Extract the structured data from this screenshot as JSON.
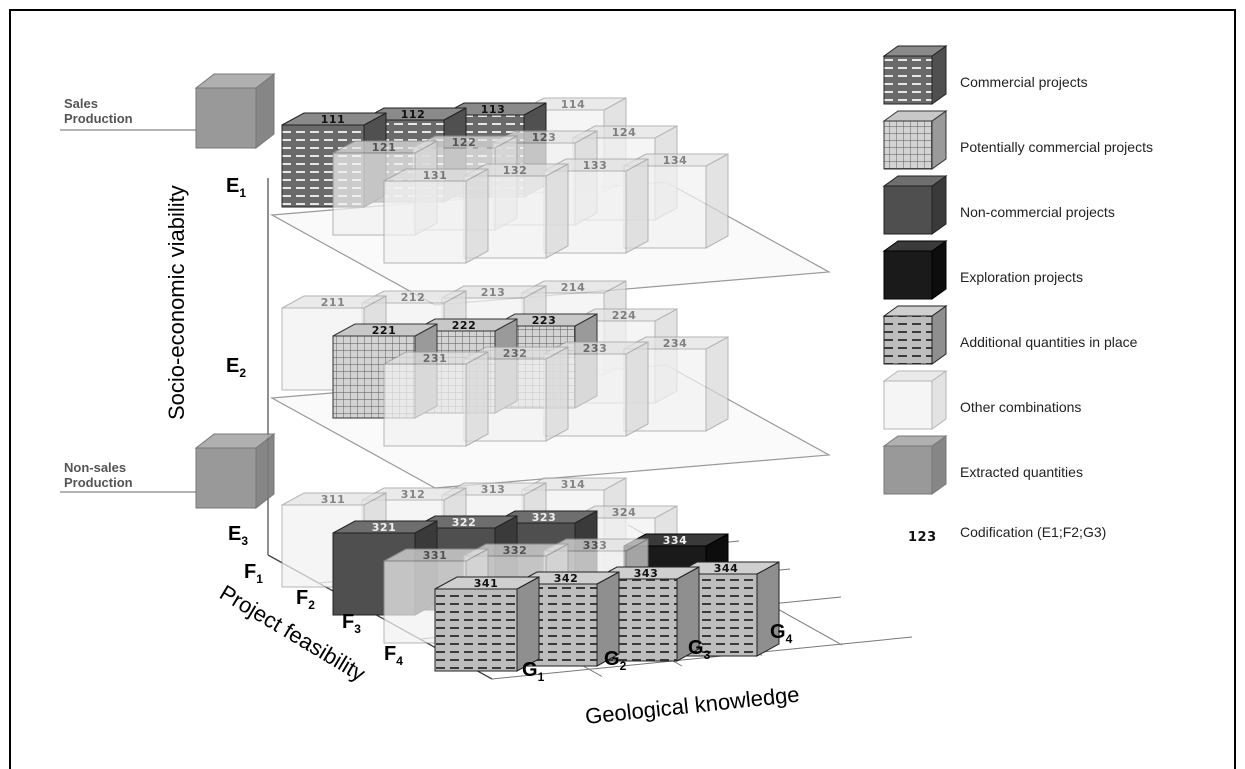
{
  "labels": {
    "socio_economic": "Socio-economic viability",
    "project_feasibility": "Project feasibility",
    "geological_knowledge": "Geological knowledge",
    "sales_production": [
      "Sales",
      "Production"
    ],
    "non_sales_production": [
      "Non-sales",
      "Production"
    ]
  },
  "e_levels": [
    {
      "main": "E",
      "sub": "1"
    },
    {
      "main": "E",
      "sub": "2"
    },
    {
      "main": "E",
      "sub": "3"
    }
  ],
  "f_levels": [
    {
      "main": "F",
      "sub": "1"
    },
    {
      "main": "F",
      "sub": "2"
    },
    {
      "main": "F",
      "sub": "3"
    },
    {
      "main": "F",
      "sub": "4"
    }
  ],
  "g_levels": [
    {
      "main": "G",
      "sub": "1"
    },
    {
      "main": "G",
      "sub": "2"
    },
    {
      "main": "G",
      "sub": "3"
    },
    {
      "main": "G",
      "sub": "4"
    }
  ],
  "legend": [
    {
      "type": "commercial",
      "label": "Commercial projects"
    },
    {
      "type": "potential",
      "label": "Potentially commercial projects"
    },
    {
      "type": "noncommercial",
      "label": "Non-commercial projects"
    },
    {
      "type": "exploration",
      "label": "Exploration projects"
    },
    {
      "type": "additional",
      "label": "Additional quantities in place"
    },
    {
      "type": "other",
      "label": "Other combinations"
    },
    {
      "type": "extracted",
      "label": "Extracted quantities"
    },
    {
      "type": "code",
      "code": "123",
      "label": "Codification (E1;F2;G3)"
    }
  ],
  "cubes": [
    {
      "code": "114",
      "type": "other"
    },
    {
      "code": "113",
      "type": "commercial"
    },
    {
      "code": "112",
      "type": "commercial"
    },
    {
      "code": "111",
      "type": "commercial"
    },
    {
      "code": "124",
      "type": "other"
    },
    {
      "code": "123",
      "type": "other"
    },
    {
      "code": "122",
      "type": "other"
    },
    {
      "code": "121",
      "type": "other"
    },
    {
      "code": "134",
      "type": "other"
    },
    {
      "code": "133",
      "type": "other"
    },
    {
      "code": "132",
      "type": "other"
    },
    {
      "code": "131",
      "type": "other"
    },
    {
      "code": "214",
      "type": "other"
    },
    {
      "code": "213",
      "type": "other"
    },
    {
      "code": "212",
      "type": "other"
    },
    {
      "code": "211",
      "type": "other"
    },
    {
      "code": "224",
      "type": "other"
    },
    {
      "code": "223",
      "type": "potential"
    },
    {
      "code": "222",
      "type": "potential"
    },
    {
      "code": "221",
      "type": "potential"
    },
    {
      "code": "234",
      "type": "other"
    },
    {
      "code": "233",
      "type": "other"
    },
    {
      "code": "232",
      "type": "other"
    },
    {
      "code": "231",
      "type": "other"
    },
    {
      "code": "314",
      "type": "other"
    },
    {
      "code": "313",
      "type": "other"
    },
    {
      "code": "312",
      "type": "other"
    },
    {
      "code": "311",
      "type": "other"
    },
    {
      "code": "324",
      "type": "other"
    },
    {
      "code": "323",
      "type": "noncommercial"
    },
    {
      "code": "322",
      "type": "noncommercial"
    },
    {
      "code": "321",
      "type": "noncommercial"
    },
    {
      "code": "334",
      "type": "exploration"
    },
    {
      "code": "333",
      "type": "other"
    },
    {
      "code": "332",
      "type": "other"
    },
    {
      "code": "331",
      "type": "other"
    },
    {
      "code": "344",
      "type": "additional"
    },
    {
      "code": "343",
      "type": "additional"
    },
    {
      "code": "342",
      "type": "additional"
    },
    {
      "code": "341",
      "type": "additional"
    }
  ]
}
